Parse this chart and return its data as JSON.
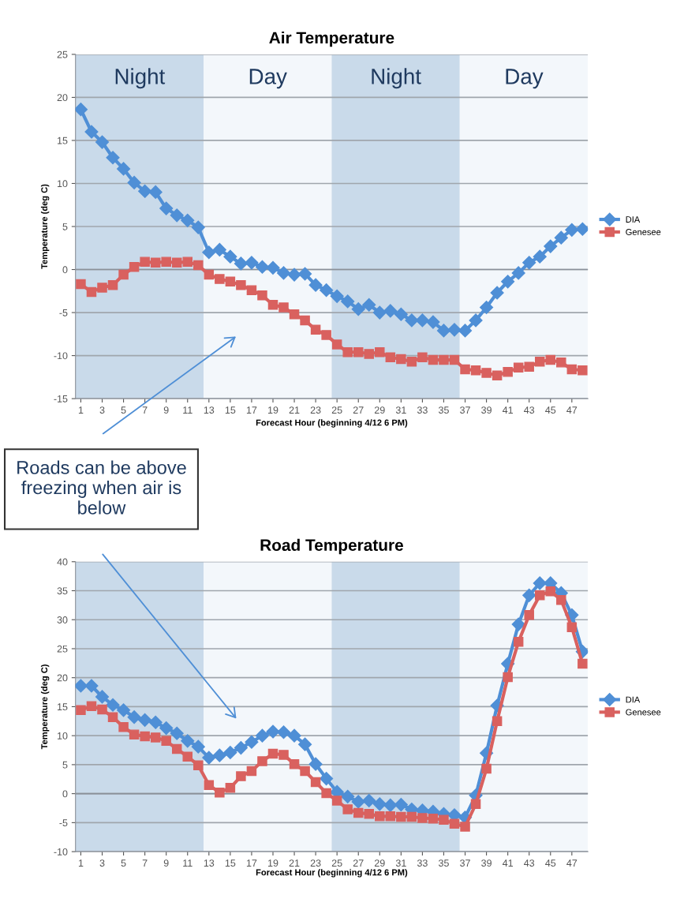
{
  "chart_data": [
    {
      "type": "line",
      "title": "Air Temperature",
      "xlabel": "Forecast Hour (beginning 4/12 6 PM)",
      "ylabel": "Temperature (deg C)",
      "x": [
        1,
        2,
        3,
        4,
        5,
        6,
        7,
        8,
        9,
        10,
        11,
        12,
        13,
        14,
        15,
        16,
        17,
        18,
        19,
        20,
        21,
        22,
        23,
        24,
        25,
        26,
        27,
        28,
        29,
        30,
        31,
        32,
        33,
        34,
        35,
        36,
        37,
        38,
        39,
        40,
        41,
        42,
        43,
        44,
        45,
        46,
        47,
        48
      ],
      "xlim": [
        0.5,
        48.5
      ],
      "xticks": [
        1,
        3,
        5,
        7,
        9,
        11,
        13,
        15,
        17,
        19,
        21,
        23,
        25,
        27,
        29,
        31,
        33,
        35,
        37,
        39,
        41,
        43,
        45,
        47
      ],
      "ylim": [
        -15,
        25
      ],
      "yticks": [
        -15,
        -10,
        -5,
        0,
        5,
        10,
        15,
        20,
        25
      ],
      "grid": "y",
      "legend": "right",
      "series": [
        {
          "name": "DIA",
          "color": "#4f8fd6",
          "marker": "diamond",
          "values": [
            18.6,
            16.0,
            14.8,
            13.0,
            11.7,
            10.1,
            9.1,
            9.0,
            7.1,
            6.3,
            5.7,
            4.9,
            2.0,
            2.3,
            1.5,
            0.7,
            0.8,
            0.3,
            0.2,
            -0.4,
            -0.6,
            -0.5,
            -1.8,
            -2.4,
            -3.1,
            -3.7,
            -4.6,
            -4.1,
            -5.0,
            -4.8,
            -5.2,
            -5.9,
            -5.9,
            -6.1,
            -7.1,
            -7.0,
            -7.1,
            -5.9,
            -4.4,
            -2.7,
            -1.4,
            -0.4,
            0.8,
            1.5,
            2.7,
            3.7,
            4.6,
            4.7
          ]
        },
        {
          "name": "Genesee",
          "color": "#d9615f",
          "marker": "square",
          "values": [
            -1.7,
            -2.6,
            -2.1,
            -1.8,
            -0.6,
            0.3,
            0.9,
            0.8,
            0.9,
            0.8,
            0.9,
            0.5,
            -0.6,
            -1.1,
            -1.4,
            -1.8,
            -2.4,
            -3.0,
            -4.1,
            -4.4,
            -5.2,
            -5.9,
            -7.0,
            -7.6,
            -8.7,
            -9.6,
            -9.6,
            -9.8,
            -9.6,
            -10.2,
            -10.4,
            -10.7,
            -10.2,
            -10.5,
            -10.5,
            -10.5,
            -11.6,
            -11.7,
            -12.0,
            -12.3,
            -11.9,
            -11.4,
            -11.3,
            -10.7,
            -10.5,
            -10.8,
            -11.6,
            -11.7
          ]
        }
      ],
      "bands": [
        {
          "axis": "x",
          "from": 0.5,
          "to": 12.5,
          "label": "Night",
          "color": "#c9daea"
        },
        {
          "axis": "x",
          "from": 12.5,
          "to": 24.5,
          "label": "Day",
          "color": "#f3f7fb"
        },
        {
          "axis": "x",
          "from": 24.5,
          "to": 36.5,
          "label": "Night",
          "color": "#c9daea"
        },
        {
          "axis": "x",
          "from": 36.5,
          "to": 48.5,
          "label": "Day",
          "color": "#f3f7fb"
        }
      ],
      "annotations": [
        "Roads can be above freezing when air is below"
      ]
    },
    {
      "type": "line",
      "title": "Road Temperature",
      "xlabel": "Forecast Hour (beginning 4/12 6 PM)",
      "ylabel": "Temperature (deg C)",
      "x": [
        1,
        2,
        3,
        4,
        5,
        6,
        7,
        8,
        9,
        10,
        11,
        12,
        13,
        14,
        15,
        16,
        17,
        18,
        19,
        20,
        21,
        22,
        23,
        24,
        25,
        26,
        27,
        28,
        29,
        30,
        31,
        32,
        33,
        34,
        35,
        36,
        37,
        38,
        39,
        40,
        41,
        42,
        43,
        44,
        45,
        46,
        47,
        48
      ],
      "xlim": [
        0.5,
        48.5
      ],
      "xticks": [
        1,
        3,
        5,
        7,
        9,
        11,
        13,
        15,
        17,
        19,
        21,
        23,
        25,
        27,
        29,
        31,
        33,
        35,
        37,
        39,
        41,
        43,
        45,
        47
      ],
      "ylim": [
        -10,
        40
      ],
      "yticks": [
        -10,
        -5,
        0,
        5,
        10,
        15,
        20,
        25,
        30,
        35,
        40
      ],
      "grid": "y",
      "legend": "right",
      "series": [
        {
          "name": "DIA",
          "color": "#4f8fd6",
          "marker": "diamond",
          "values": [
            18.6,
            18.6,
            16.7,
            15.3,
            14.4,
            13.2,
            12.7,
            12.3,
            11.3,
            10.4,
            9.1,
            8.1,
            6.2,
            6.6,
            7.1,
            7.9,
            8.9,
            10.0,
            10.7,
            10.6,
            10.0,
            8.5,
            5.1,
            2.6,
            0.3,
            -0.5,
            -1.4,
            -1.2,
            -1.8,
            -2.0,
            -1.9,
            -2.7,
            -2.9,
            -3.1,
            -3.5,
            -3.7,
            -4.1,
            -0.3,
            7.0,
            15.2,
            22.4,
            29.2,
            34.2,
            36.3,
            36.3,
            34.6,
            30.8,
            24.5
          ]
        },
        {
          "name": "Genesee",
          "color": "#d9615f",
          "marker": "square",
          "values": [
            14.4,
            15.1,
            14.5,
            13.2,
            11.5,
            10.2,
            9.9,
            9.7,
            9.1,
            7.7,
            6.4,
            4.9,
            1.5,
            0.2,
            1.0,
            3.0,
            3.9,
            5.6,
            6.9,
            6.7,
            5.1,
            3.9,
            2.0,
            0.1,
            -1.2,
            -2.7,
            -3.3,
            -3.5,
            -3.9,
            -3.9,
            -4.0,
            -4.0,
            -4.2,
            -4.3,
            -4.5,
            -5.2,
            -5.7,
            -1.8,
            4.3,
            12.5,
            20.1,
            26.2,
            30.8,
            34.2,
            34.9,
            33.4,
            28.7,
            22.4
          ]
        }
      ],
      "bands": [
        {
          "axis": "x",
          "from": 0.5,
          "to": 12.5,
          "color": "#c9daea"
        },
        {
          "axis": "x",
          "from": 12.5,
          "to": 24.5,
          "color": "#f3f7fb"
        },
        {
          "axis": "x",
          "from": 24.5,
          "to": 36.5,
          "color": "#c9daea"
        },
        {
          "axis": "x",
          "from": 36.5,
          "to": 48.5,
          "color": "#f3f7fb"
        }
      ]
    }
  ]
}
